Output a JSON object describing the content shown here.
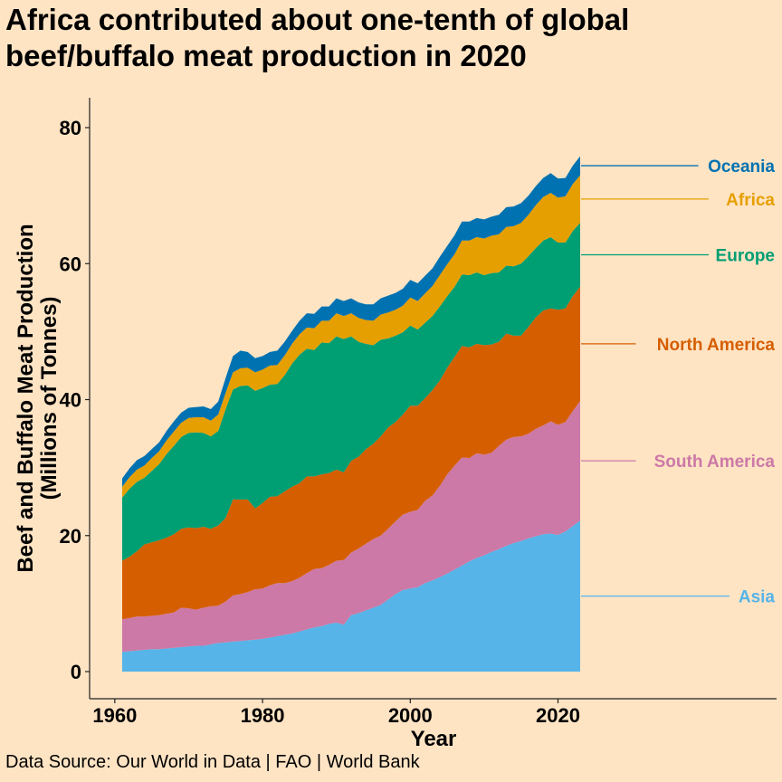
{
  "title": "Africa contributed about one-tenth of global beef/buffalo meat production in 2020",
  "caption": "Data Source: Our World in Data | FAO | World Bank",
  "chart_data": {
    "type": "area",
    "stacked": true,
    "xlabel": "Year",
    "ylabel_line1": "Beef and Buffalo Meat Production",
    "ylabel_line2": "(Millions of Tonnes)",
    "xlim": [
      1961,
      2023
    ],
    "ylim": [
      0,
      80
    ],
    "x_ticks": [
      1960,
      1980,
      2000,
      2020
    ],
    "y_ticks": [
      0,
      20,
      40,
      60,
      80
    ],
    "grid": false,
    "legend": "direct labels at right end of areas",
    "x": [
      1961,
      1962,
      1963,
      1964,
      1965,
      1966,
      1967,
      1968,
      1969,
      1970,
      1971,
      1972,
      1973,
      1974,
      1975,
      1976,
      1977,
      1978,
      1979,
      1980,
      1981,
      1982,
      1983,
      1984,
      1985,
      1986,
      1987,
      1988,
      1989,
      1990,
      1991,
      1992,
      1993,
      1994,
      1995,
      1996,
      1997,
      1998,
      1999,
      2000,
      2001,
      2002,
      2003,
      2004,
      2005,
      2006,
      2007,
      2008,
      2009,
      2010,
      2011,
      2012,
      2013,
      2014,
      2015,
      2016,
      2017,
      2018,
      2019,
      2020,
      2021,
      2022,
      2023
    ],
    "series": [
      {
        "name": "Asia",
        "color": "#56B4E9",
        "values": [
          2.9,
          3.0,
          3.1,
          3.2,
          3.3,
          3.3,
          3.4,
          3.5,
          3.6,
          3.7,
          3.8,
          3.8,
          4.0,
          4.2,
          4.3,
          4.4,
          4.5,
          4.6,
          4.7,
          4.8,
          5.0,
          5.2,
          5.4,
          5.6,
          5.9,
          6.2,
          6.5,
          6.7,
          7.0,
          7.2,
          6.9,
          8.3,
          8.6,
          9.0,
          9.4,
          9.8,
          10.6,
          11.4,
          12.0,
          12.2,
          12.4,
          13.0,
          13.4,
          13.9,
          14.4,
          15.0,
          15.6,
          16.2,
          16.7,
          17.1,
          17.6,
          18.0,
          18.5,
          18.9,
          19.2,
          19.6,
          19.9,
          20.2,
          20.3,
          20.1,
          20.6,
          21.4,
          22.2
        ]
      },
      {
        "name": "South America",
        "color": "#CC79A7",
        "values": [
          4.8,
          4.9,
          5.0,
          4.9,
          4.9,
          5.0,
          5.1,
          5.2,
          5.8,
          5.6,
          5.3,
          5.6,
          5.6,
          5.5,
          6.0,
          6.8,
          6.9,
          7.1,
          7.4,
          7.4,
          7.7,
          7.8,
          7.6,
          7.7,
          7.9,
          8.3,
          8.6,
          8.5,
          8.7,
          9.1,
          9.5,
          9.2,
          9.5,
          9.8,
          10.1,
          10.2,
          10.4,
          10.7,
          11.1,
          11.3,
          11.4,
          12.1,
          12.5,
          13.4,
          14.6,
          15.3,
          15.9,
          15.2,
          15.4,
          14.8,
          14.6,
          15.2,
          15.6,
          15.6,
          15.4,
          15.4,
          15.8,
          16.0,
          16.5,
          16.2,
          16.1,
          16.9,
          17.6
        ]
      },
      {
        "name": "North America",
        "color": "#D55E00",
        "values": [
          8.6,
          9.0,
          9.6,
          10.6,
          10.8,
          11.0,
          11.2,
          11.5,
          11.6,
          11.9,
          12.0,
          11.9,
          11.4,
          11.8,
          12.3,
          14.1,
          13.9,
          13.6,
          11.9,
          12.6,
          13.0,
          12.8,
          13.5,
          13.9,
          13.9,
          14.2,
          13.6,
          13.8,
          13.5,
          13.4,
          12.9,
          13.5,
          13.5,
          13.9,
          14.0,
          14.6,
          14.9,
          14.6,
          14.7,
          15.6,
          15.3,
          15.1,
          15.5,
          15.5,
          15.7,
          16.0,
          16.4,
          16.3,
          16.1,
          16.1,
          15.9,
          15.3,
          15.6,
          14.9,
          14.8,
          15.7,
          16.4,
          16.9,
          16.6,
          16.9,
          16.7,
          16.9,
          16.8
        ]
      },
      {
        "name": "Europe",
        "color": "#009E73",
        "values": [
          9.3,
          10.0,
          10.2,
          9.8,
          10.5,
          11.2,
          12.3,
          13.0,
          13.5,
          13.9,
          14.1,
          13.8,
          13.6,
          13.9,
          16.0,
          16.2,
          16.7,
          16.8,
          17.3,
          16.9,
          16.5,
          16.5,
          17.1,
          18.1,
          18.9,
          18.8,
          18.6,
          19.4,
          19.1,
          19.6,
          19.6,
          18.3,
          16.9,
          15.5,
          14.5,
          14.2,
          13.1,
          12.7,
          12.1,
          11.8,
          11.2,
          11.1,
          10.9,
          10.9,
          10.5,
          10.3,
          10.5,
          10.6,
          10.5,
          10.3,
          10.5,
          10.2,
          10.0,
          10.2,
          10.6,
          10.4,
          10.2,
          10.3,
          10.5,
          9.9,
          9.7,
          9.6,
          9.4
        ]
      },
      {
        "name": "Africa",
        "color": "#E69F00",
        "values": [
          1.6,
          1.7,
          1.8,
          1.8,
          1.9,
          1.9,
          2.0,
          2.1,
          2.1,
          2.2,
          2.2,
          2.3,
          2.3,
          2.4,
          2.4,
          2.5,
          2.6,
          2.6,
          2.7,
          2.7,
          2.8,
          2.8,
          2.9,
          2.9,
          3.0,
          3.1,
          3.2,
          3.2,
          3.3,
          3.4,
          3.4,
          3.4,
          3.5,
          3.5,
          3.6,
          3.7,
          3.8,
          3.8,
          3.9,
          4.1,
          4.2,
          4.3,
          4.4,
          4.6,
          4.7,
          4.8,
          5.0,
          5.1,
          5.2,
          5.4,
          5.5,
          5.6,
          5.7,
          5.9,
          6.0,
          6.1,
          6.3,
          6.4,
          6.5,
          6.6,
          6.8,
          6.9,
          7.0
        ]
      },
      {
        "name": "Oceania",
        "color": "#0072B2",
        "values": [
          1.2,
          1.3,
          1.4,
          1.4,
          1.3,
          1.3,
          1.4,
          1.5,
          1.5,
          1.5,
          1.5,
          1.6,
          1.7,
          1.9,
          2.2,
          2.4,
          2.6,
          2.3,
          2.1,
          2.0,
          2.0,
          2.1,
          2.0,
          1.9,
          2.0,
          2.1,
          2.1,
          2.1,
          2.1,
          2.2,
          2.2,
          2.2,
          2.3,
          2.3,
          2.4,
          2.4,
          2.5,
          2.5,
          2.5,
          2.6,
          2.6,
          2.6,
          2.6,
          2.7,
          2.7,
          2.8,
          2.8,
          2.8,
          2.8,
          2.8,
          2.8,
          2.9,
          2.9,
          2.9,
          2.9,
          2.8,
          2.8,
          2.8,
          2.9,
          2.8,
          2.7,
          2.7,
          2.8
        ]
      }
    ]
  }
}
